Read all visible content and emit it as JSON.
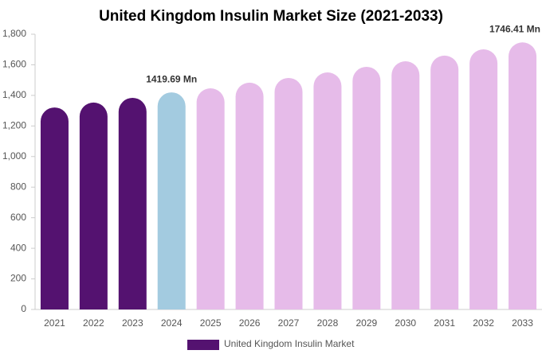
{
  "chart_data": {
    "type": "bar",
    "title": "United Kingdom Insulin Market Size (2021-2033)",
    "categories": [
      "2021",
      "2022",
      "2023",
      "2024",
      "2025",
      "2026",
      "2027",
      "2028",
      "2029",
      "2030",
      "2031",
      "2032",
      "2033"
    ],
    "series": [
      {
        "name": "United Kingdom Insulin Market",
        "color": "#541270",
        "values": [
          1321,
          1353,
          1384,
          1419.69,
          1446,
          1483,
          1514,
          1550,
          1587,
          1623,
          1660,
          1701,
          1746.41
        ],
        "value_labels": [
          null,
          null,
          null,
          "1419.69 Mn",
          null,
          null,
          null,
          null,
          null,
          null,
          null,
          null,
          "1746.41 Mn"
        ],
        "colors": [
          "#541270",
          "#541270",
          "#541270",
          "#a3cbe0",
          "#e6bbe9",
          "#e6bbe9",
          "#e6bbe9",
          "#e6bbe9",
          "#e6bbe9",
          "#e6bbe9",
          "#e6bbe9",
          "#e6bbe9",
          "#e6bbe9"
        ]
      }
    ],
    "ylim": [
      0,
      1800
    ],
    "yticks": [
      0,
      200,
      400,
      600,
      800,
      {
        "value": 1000,
        "label": "1,000"
      },
      {
        "value": 1200,
        "label": "1,200"
      },
      {
        "value": 1400,
        "label": "1,400"
      },
      {
        "value": 1600,
        "label": "1,600"
      },
      {
        "value": 1800,
        "label": "1,800"
      }
    ],
    "grid": false,
    "legend": "bottom"
  }
}
